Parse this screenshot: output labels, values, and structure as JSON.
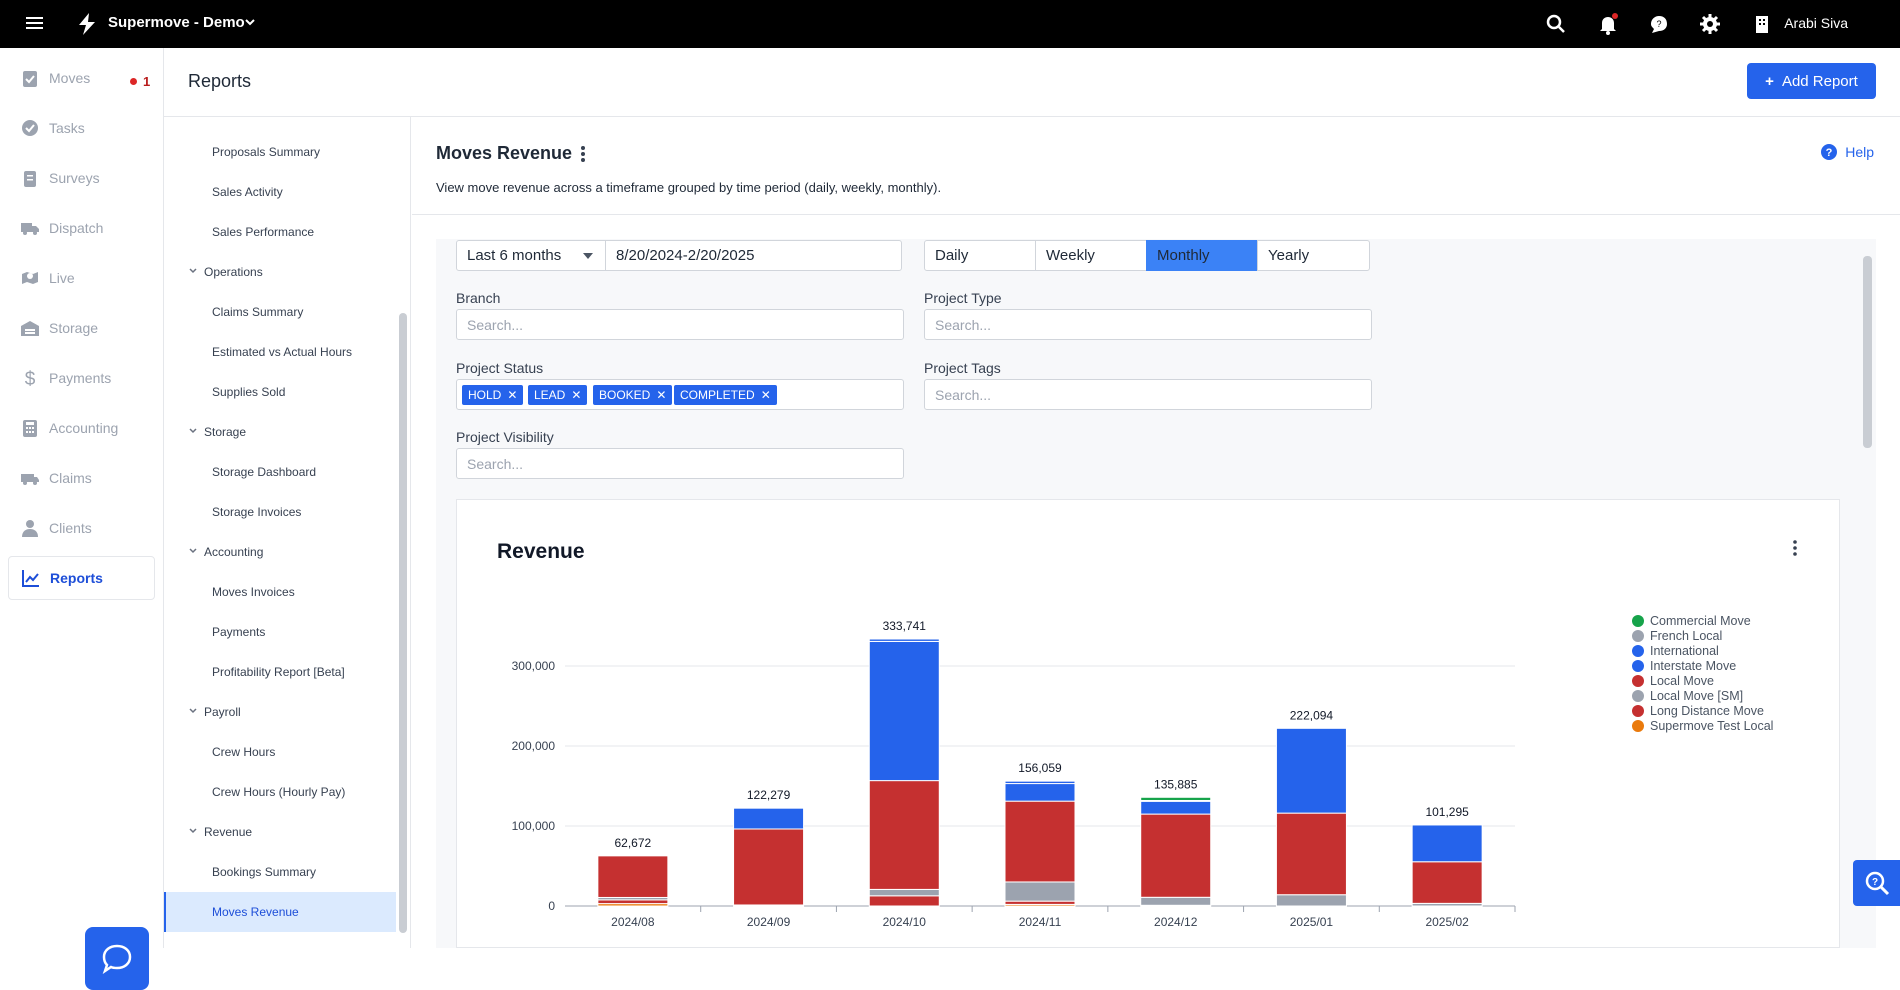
{
  "app": {
    "title": "Supermove - Demo",
    "user": "Arabi Siva"
  },
  "topbar_icons": [
    "search-icon",
    "bell-icon",
    "chat-icon",
    "gear-icon",
    "building-icon"
  ],
  "sidebar": {
    "items": [
      {
        "label": "Moves",
        "icon": "clipboard-check-icon",
        "badge": "1"
      },
      {
        "label": "Tasks",
        "icon": "check-circle-icon"
      },
      {
        "label": "Surveys",
        "icon": "clipboard-icon"
      },
      {
        "label": "Dispatch",
        "icon": "truck-icon"
      },
      {
        "label": "Live",
        "icon": "map-pin-icon"
      },
      {
        "label": "Storage",
        "icon": "warehouse-icon"
      },
      {
        "label": "Payments",
        "icon": "dollar-icon"
      },
      {
        "label": "Accounting",
        "icon": "calculator-icon"
      },
      {
        "label": "Claims",
        "icon": "truck-loading-icon"
      },
      {
        "label": "Clients",
        "icon": "user-icon"
      },
      {
        "label": "Reports",
        "icon": "chart-line-icon",
        "active": true
      }
    ]
  },
  "header": {
    "title": "Reports",
    "add_button": "Add Report"
  },
  "reports_list": {
    "entries": [
      {
        "type": "item",
        "label": "Proposals Summary"
      },
      {
        "type": "item",
        "label": "Sales Activity"
      },
      {
        "type": "item",
        "label": "Sales Performance"
      },
      {
        "type": "cat",
        "label": "Operations"
      },
      {
        "type": "item",
        "label": "Claims Summary"
      },
      {
        "type": "item",
        "label": "Estimated vs Actual Hours"
      },
      {
        "type": "item",
        "label": "Supplies Sold"
      },
      {
        "type": "cat",
        "label": "Storage"
      },
      {
        "type": "item",
        "label": "Storage Dashboard"
      },
      {
        "type": "item",
        "label": "Storage Invoices"
      },
      {
        "type": "cat",
        "label": "Accounting"
      },
      {
        "type": "item",
        "label": "Moves Invoices"
      },
      {
        "type": "item",
        "label": "Payments"
      },
      {
        "type": "item",
        "label": "Profitability Report [Beta]"
      },
      {
        "type": "cat",
        "label": "Payroll"
      },
      {
        "type": "item",
        "label": "Crew Hours"
      },
      {
        "type": "item",
        "label": "Crew Hours (Hourly Pay)"
      },
      {
        "type": "cat",
        "label": "Revenue"
      },
      {
        "type": "item",
        "label": "Bookings Summary"
      },
      {
        "type": "item",
        "label": "Moves Revenue",
        "active": true
      }
    ]
  },
  "report": {
    "title": "Moves Revenue",
    "help": "Help",
    "description": "View move revenue across a timeframe grouped by time period (daily, weekly, monthly).",
    "range_select": "Last 6 months",
    "date_range": "8/20/2024-2/20/2025",
    "periods": [
      "Daily",
      "Weekly",
      "Monthly",
      "Yearly"
    ],
    "active_period": "Monthly",
    "filters": {
      "branch_label": "Branch",
      "project_type_label": "Project Type",
      "project_status_label": "Project Status",
      "project_tags_label": "Project Tags",
      "project_visibility_label": "Project Visibility",
      "search_placeholder": "Search..."
    },
    "status_tags": [
      "HOLD",
      "LEAD",
      "BOOKED",
      "COMPLETED"
    ]
  },
  "chart_data": {
    "type": "bar",
    "stacked": true,
    "title": "Revenue",
    "categories": [
      "2024/08",
      "2024/09",
      "2024/10",
      "2024/11",
      "2024/12",
      "2025/01",
      "2025/02"
    ],
    "totals": [
      "62,672",
      "122,279",
      "333,741",
      "156,059",
      "135,885",
      "222,094",
      "101,295"
    ],
    "ylim": [
      0,
      340000
    ],
    "yticks": [
      0,
      100000,
      200000,
      300000
    ],
    "ytick_labels": [
      "0",
      "100,000",
      "200,000",
      "300,000"
    ],
    "legend_position": "right",
    "series": [
      {
        "name": "Commercial Move",
        "color": "#16a34a",
        "values": [
          0,
          0,
          0,
          0,
          4000,
          0,
          0
        ]
      },
      {
        "name": "French Local",
        "color": "#9ca3af",
        "values": [
          0,
          0,
          0,
          0,
          0,
          0,
          0
        ]
      },
      {
        "name": "International",
        "color": "#2563eb",
        "values": [
          0,
          0,
          3000,
          3000,
          1000,
          0,
          0
        ]
      },
      {
        "name": "Interstate Move",
        "color": "#2563eb",
        "values": [
          0,
          26000,
          174000,
          22000,
          16000,
          106000,
          46000
        ]
      },
      {
        "name": "Local Move",
        "color": "#c53030",
        "values": [
          52000,
          95000,
          136000,
          101000,
          104000,
          102000,
          52000
        ]
      },
      {
        "name": "Local Move [SM]",
        "color": "#9ca3af",
        "values": [
          3000,
          1279,
          8000,
          24000,
          10000,
          14094,
          3295
        ]
      },
      {
        "name": "Long Distance Move",
        "color": "#c53030",
        "values": [
          4672,
          0,
          12741,
          4059,
          885,
          0,
          0
        ]
      },
      {
        "name": "Supermove Test Local",
        "color": "#ea7a0c",
        "values": [
          3000,
          0,
          0,
          2000,
          0,
          0,
          0
        ]
      }
    ]
  }
}
